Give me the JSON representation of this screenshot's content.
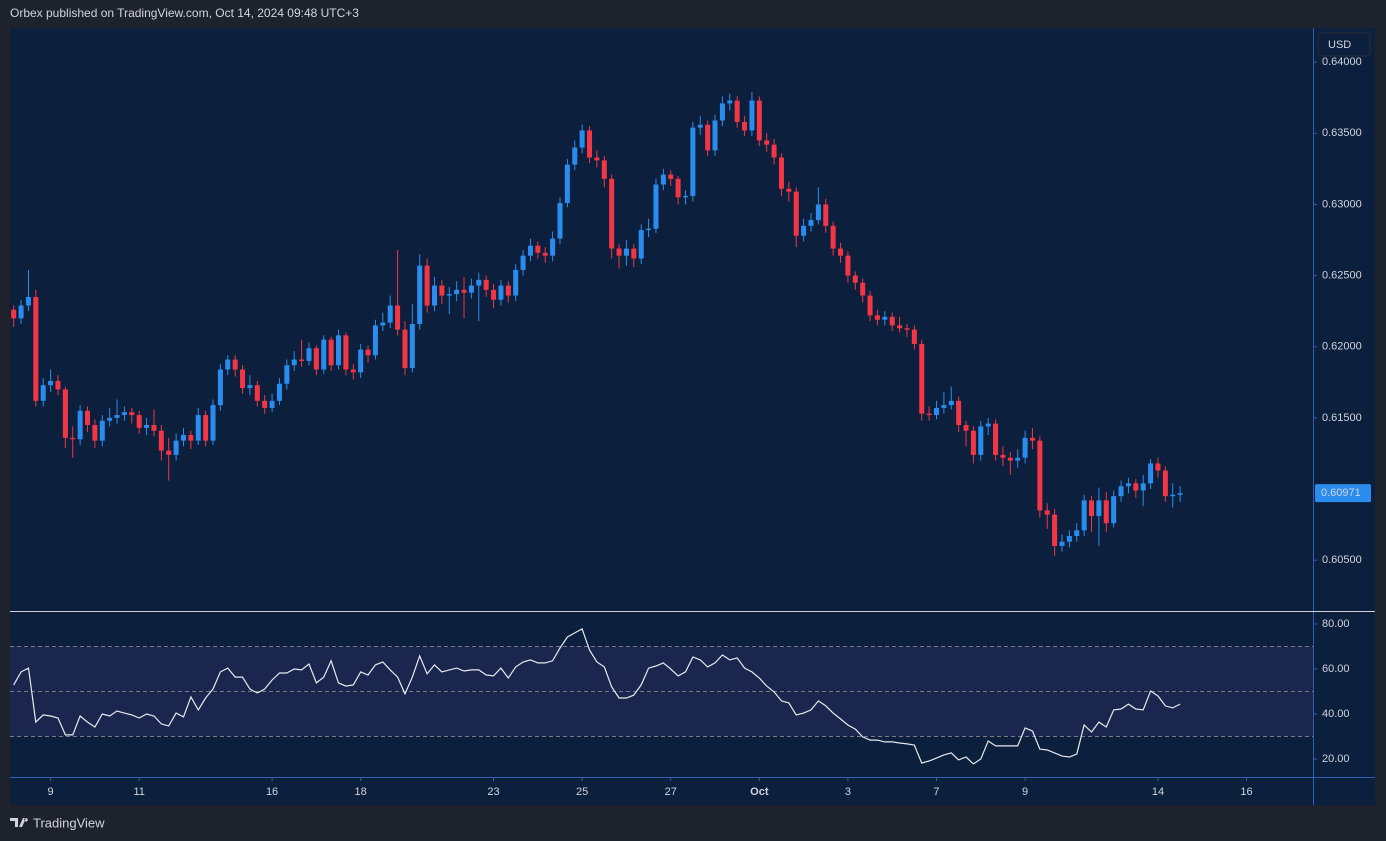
{
  "header": {
    "text": "Orbex published on TradingView.com, Oct 14, 2024 09:48 UTC+3"
  },
  "footer": {
    "brand": "TradingView"
  },
  "chart_data": [
    {
      "type": "candlestick",
      "currency": "USD",
      "up_color": "#2a8ded",
      "down_color": "#f23645",
      "grid": false,
      "last_price_label": true,
      "xlim": [
        -0.5,
        176
      ],
      "ylim": [
        0.6015,
        0.6424
      ],
      "xticks": [
        {
          "value": 5,
          "label": "9"
        },
        {
          "value": 17,
          "label": "11"
        },
        {
          "value": 35,
          "label": "16"
        },
        {
          "value": 47,
          "label": "18"
        },
        {
          "value": 65,
          "label": "23"
        },
        {
          "value": 77,
          "label": "25"
        },
        {
          "value": 89,
          "label": "27"
        },
        {
          "value": 101,
          "label": "Oct"
        },
        {
          "value": 113,
          "label": "3"
        },
        {
          "value": 125,
          "label": "7"
        },
        {
          "value": 137,
          "label": "9"
        },
        {
          "value": 155,
          "label": "14"
        },
        {
          "value": 167,
          "label": "16"
        }
      ],
      "yticks": [
        {
          "value": 0.605,
          "label": "0.60500"
        },
        {
          "value": 0.615,
          "label": "0.61500"
        },
        {
          "value": 0.62,
          "label": "0.62000"
        },
        {
          "value": 0.625,
          "label": "0.62500"
        },
        {
          "value": 0.63,
          "label": "0.63000"
        },
        {
          "value": 0.635,
          "label": "0.63500"
        },
        {
          "value": 0.64,
          "label": "0.64000"
        }
      ],
      "candles": [
        [
          0.6226,
          0.6229,
          0.6214,
          0.622
        ],
        [
          0.622,
          0.6233,
          0.6216,
          0.6229
        ],
        [
          0.6229,
          0.6254,
          0.6225,
          0.6235
        ],
        [
          0.6235,
          0.624,
          0.6158,
          0.6162
        ],
        [
          0.6162,
          0.6178,
          0.6158,
          0.6173
        ],
        [
          0.6173,
          0.6184,
          0.6168,
          0.6176
        ],
        [
          0.6176,
          0.618,
          0.6166,
          0.617
        ],
        [
          0.617,
          0.6172,
          0.6129,
          0.6136
        ],
        [
          0.6136,
          0.6144,
          0.6122,
          0.6135
        ],
        [
          0.6135,
          0.6159,
          0.6131,
          0.6155
        ],
        [
          0.6155,
          0.6158,
          0.614,
          0.6145
        ],
        [
          0.6145,
          0.6149,
          0.6129,
          0.6134
        ],
        [
          0.6134,
          0.6152,
          0.613,
          0.6148
        ],
        [
          0.6148,
          0.6157,
          0.6144,
          0.615
        ],
        [
          0.615,
          0.6163,
          0.6146,
          0.6152
        ],
        [
          0.6152,
          0.6158,
          0.6148,
          0.6154
        ],
        [
          0.6154,
          0.6157,
          0.6146,
          0.6152
        ],
        [
          0.6152,
          0.6155,
          0.6139,
          0.6143
        ],
        [
          0.6143,
          0.615,
          0.6138,
          0.6145
        ],
        [
          0.6145,
          0.6156,
          0.6137,
          0.6141
        ],
        [
          0.6141,
          0.6145,
          0.612,
          0.6127
        ],
        [
          0.6127,
          0.6136,
          0.6106,
          0.6124
        ],
        [
          0.6124,
          0.6139,
          0.612,
          0.6134
        ],
        [
          0.6134,
          0.6143,
          0.613,
          0.6138
        ],
        [
          0.6138,
          0.6141,
          0.6128,
          0.6134
        ],
        [
          0.6134,
          0.6157,
          0.6131,
          0.6152
        ],
        [
          0.6152,
          0.6155,
          0.613,
          0.6134
        ],
        [
          0.6134,
          0.6163,
          0.6131,
          0.6159
        ],
        [
          0.6159,
          0.6188,
          0.6155,
          0.6184
        ],
        [
          0.6184,
          0.6194,
          0.618,
          0.6191
        ],
        [
          0.6191,
          0.6194,
          0.6179,
          0.6184
        ],
        [
          0.6184,
          0.6187,
          0.6167,
          0.6171
        ],
        [
          0.6171,
          0.618,
          0.6166,
          0.6173
        ],
        [
          0.6173,
          0.6176,
          0.6158,
          0.6162
        ],
        [
          0.6162,
          0.6166,
          0.6153,
          0.6157
        ],
        [
          0.6157,
          0.6167,
          0.6154,
          0.6162
        ],
        [
          0.6162,
          0.6178,
          0.6159,
          0.6174
        ],
        [
          0.6174,
          0.6191,
          0.617,
          0.6187
        ],
        [
          0.6187,
          0.6197,
          0.6183,
          0.6191
        ],
        [
          0.6191,
          0.6205,
          0.6186,
          0.619
        ],
        [
          0.619,
          0.6203,
          0.6187,
          0.6199
        ],
        [
          0.6199,
          0.6201,
          0.618,
          0.6184
        ],
        [
          0.6184,
          0.6208,
          0.6181,
          0.6205
        ],
        [
          0.6205,
          0.6207,
          0.6183,
          0.6187
        ],
        [
          0.6187,
          0.6212,
          0.6184,
          0.6208
        ],
        [
          0.6208,
          0.621,
          0.618,
          0.6184
        ],
        [
          0.6184,
          0.6188,
          0.6177,
          0.6182
        ],
        [
          0.6182,
          0.6202,
          0.6178,
          0.6198
        ],
        [
          0.6198,
          0.6201,
          0.6189,
          0.6194
        ],
        [
          0.6194,
          0.6219,
          0.6191,
          0.6215
        ],
        [
          0.6215,
          0.6224,
          0.6211,
          0.6217
        ],
        [
          0.6217,
          0.6236,
          0.6213,
          0.6229
        ],
        [
          0.6229,
          0.6268,
          0.6208,
          0.6212
        ],
        [
          0.6212,
          0.6218,
          0.618,
          0.6185
        ],
        [
          0.6185,
          0.623,
          0.6182,
          0.6216
        ],
        [
          0.6216,
          0.6265,
          0.6212,
          0.6257
        ],
        [
          0.6257,
          0.6262,
          0.6224,
          0.6229
        ],
        [
          0.6229,
          0.6249,
          0.6225,
          0.6243
        ],
        [
          0.6243,
          0.6247,
          0.623,
          0.6236
        ],
        [
          0.6236,
          0.6242,
          0.6223,
          0.6237
        ],
        [
          0.6237,
          0.6246,
          0.6232,
          0.624
        ],
        [
          0.624,
          0.6249,
          0.622,
          0.6238
        ],
        [
          0.6238,
          0.6248,
          0.6234,
          0.6243
        ],
        [
          0.6243,
          0.6252,
          0.6218,
          0.6247
        ],
        [
          0.6247,
          0.625,
          0.6235,
          0.624
        ],
        [
          0.624,
          0.6244,
          0.6227,
          0.6233
        ],
        [
          0.6233,
          0.6247,
          0.6229,
          0.6243
        ],
        [
          0.6243,
          0.6246,
          0.6231,
          0.6236
        ],
        [
          0.6236,
          0.6258,
          0.6232,
          0.6254
        ],
        [
          0.6254,
          0.6268,
          0.625,
          0.6264
        ],
        [
          0.6264,
          0.6276,
          0.626,
          0.6271
        ],
        [
          0.6271,
          0.6274,
          0.6262,
          0.6266
        ],
        [
          0.6266,
          0.627,
          0.6259,
          0.6264
        ],
        [
          0.6264,
          0.6281,
          0.626,
          0.6276
        ],
        [
          0.6276,
          0.6305,
          0.6272,
          0.6301
        ],
        [
          0.6301,
          0.6332,
          0.6298,
          0.6328
        ],
        [
          0.6328,
          0.6345,
          0.6324,
          0.634
        ],
        [
          0.634,
          0.6356,
          0.6336,
          0.6352
        ],
        [
          0.6352,
          0.6355,
          0.6329,
          0.6333
        ],
        [
          0.6333,
          0.6338,
          0.6326,
          0.6331
        ],
        [
          0.6331,
          0.6334,
          0.6312,
          0.6318
        ],
        [
          0.6318,
          0.6321,
          0.6262,
          0.6269
        ],
        [
          0.6269,
          0.6272,
          0.6255,
          0.6264
        ],
        [
          0.6264,
          0.6275,
          0.6257,
          0.6269
        ],
        [
          0.6269,
          0.6272,
          0.6256,
          0.6262
        ],
        [
          0.6262,
          0.6286,
          0.6258,
          0.6282
        ],
        [
          0.6282,
          0.629,
          0.6277,
          0.6283
        ],
        [
          0.6283,
          0.6318,
          0.628,
          0.6314
        ],
        [
          0.6314,
          0.6325,
          0.631,
          0.6321
        ],
        [
          0.6321,
          0.6324,
          0.6313,
          0.6318
        ],
        [
          0.6318,
          0.632,
          0.63,
          0.6305
        ],
        [
          0.6305,
          0.631,
          0.63,
          0.6306
        ],
        [
          0.6306,
          0.6358,
          0.6302,
          0.6354
        ],
        [
          0.6354,
          0.6362,
          0.6349,
          0.6356
        ],
        [
          0.6356,
          0.6359,
          0.6334,
          0.6338
        ],
        [
          0.6338,
          0.6363,
          0.6334,
          0.6359
        ],
        [
          0.6359,
          0.6376,
          0.6355,
          0.6371
        ],
        [
          0.6371,
          0.6378,
          0.6366,
          0.6373
        ],
        [
          0.6373,
          0.6376,
          0.6354,
          0.6358
        ],
        [
          0.6358,
          0.6362,
          0.6348,
          0.6352
        ],
        [
          0.6352,
          0.6379,
          0.6348,
          0.6373
        ],
        [
          0.6373,
          0.6376,
          0.6341,
          0.6345
        ],
        [
          0.6345,
          0.635,
          0.6337,
          0.6342
        ],
        [
          0.6342,
          0.6346,
          0.6328,
          0.6333
        ],
        [
          0.6333,
          0.6336,
          0.6306,
          0.6311
        ],
        [
          0.6311,
          0.6316,
          0.6302,
          0.6309
        ],
        [
          0.6309,
          0.6312,
          0.627,
          0.6278
        ],
        [
          0.6278,
          0.629,
          0.6274,
          0.6285
        ],
        [
          0.6285,
          0.6294,
          0.6281,
          0.6289
        ],
        [
          0.6289,
          0.6312,
          0.6286,
          0.63
        ],
        [
          0.63,
          0.6304,
          0.628,
          0.6285
        ],
        [
          0.6285,
          0.6288,
          0.6264,
          0.6269
        ],
        [
          0.6269,
          0.6273,
          0.6259,
          0.6264
        ],
        [
          0.6264,
          0.6267,
          0.6245,
          0.625
        ],
        [
          0.625,
          0.6253,
          0.624,
          0.6245
        ],
        [
          0.6245,
          0.6248,
          0.6231,
          0.6236
        ],
        [
          0.6236,
          0.6239,
          0.6218,
          0.6222
        ],
        [
          0.6222,
          0.6226,
          0.6215,
          0.6219
        ],
        [
          0.6219,
          0.6225,
          0.6215,
          0.6221
        ],
        [
          0.6221,
          0.6224,
          0.6211,
          0.6215
        ],
        [
          0.6215,
          0.6221,
          0.621,
          0.6213
        ],
        [
          0.6213,
          0.6216,
          0.6207,
          0.6212
        ],
        [
          0.6212,
          0.6215,
          0.6198,
          0.6202
        ],
        [
          0.6202,
          0.6205,
          0.6148,
          0.6153
        ],
        [
          0.6153,
          0.6158,
          0.6148,
          0.6152
        ],
        [
          0.6152,
          0.6162,
          0.6149,
          0.6157
        ],
        [
          0.6157,
          0.6168,
          0.6153,
          0.6159
        ],
        [
          0.6159,
          0.6172,
          0.6156,
          0.6162
        ],
        [
          0.6162,
          0.6165,
          0.614,
          0.6145
        ],
        [
          0.6145,
          0.6148,
          0.613,
          0.6141
        ],
        [
          0.6141,
          0.6144,
          0.6118,
          0.6124
        ],
        [
          0.6124,
          0.6148,
          0.612,
          0.6144
        ],
        [
          0.6144,
          0.615,
          0.6138,
          0.6146
        ],
        [
          0.6146,
          0.6149,
          0.612,
          0.6124
        ],
        [
          0.6124,
          0.613,
          0.6116,
          0.6122
        ],
        [
          0.6122,
          0.6126,
          0.611,
          0.612
        ],
        [
          0.612,
          0.6128,
          0.6115,
          0.6122
        ],
        [
          0.6122,
          0.6141,
          0.6118,
          0.6136
        ],
        [
          0.6136,
          0.6143,
          0.6128,
          0.6134
        ],
        [
          0.6134,
          0.6137,
          0.608,
          0.6085
        ],
        [
          0.6085,
          0.609,
          0.6072,
          0.6082
        ],
        [
          0.6082,
          0.6086,
          0.6053,
          0.606
        ],
        [
          0.606,
          0.6068,
          0.6056,
          0.6063
        ],
        [
          0.6063,
          0.6071,
          0.6059,
          0.6067
        ],
        [
          0.6067,
          0.6076,
          0.6063,
          0.6071
        ],
        [
          0.6071,
          0.6096,
          0.6067,
          0.6092
        ],
        [
          0.6092,
          0.6095,
          0.607,
          0.6081
        ],
        [
          0.6081,
          0.6101,
          0.606,
          0.6092
        ],
        [
          0.6092,
          0.6098,
          0.607,
          0.6076
        ],
        [
          0.6076,
          0.6099,
          0.6073,
          0.6095
        ],
        [
          0.6095,
          0.6106,
          0.6091,
          0.6102
        ],
        [
          0.6102,
          0.6108,
          0.6097,
          0.6104
        ],
        [
          0.6104,
          0.6107,
          0.6094,
          0.6099
        ],
        [
          0.6099,
          0.611,
          0.6088,
          0.6104
        ],
        [
          0.6104,
          0.6121,
          0.61,
          0.6118
        ],
        [
          0.6118,
          0.6122,
          0.6108,
          0.6113
        ],
        [
          0.6113,
          0.6116,
          0.6091,
          0.6095
        ],
        [
          0.6095,
          0.6104,
          0.6087,
          0.6096
        ],
        [
          0.6096,
          0.6102,
          0.6091,
          0.60971
        ]
      ]
    },
    {
      "type": "line",
      "color": "#e6e8ee",
      "band_color": "#7e57c2",
      "levels": [
        70,
        50,
        30
      ],
      "xlim": [
        -0.5,
        176
      ],
      "ylim": [
        12,
        85.3
      ],
      "yticks": [
        {
          "value": 20,
          "label": "20.00"
        },
        {
          "value": 40,
          "label": "40.00"
        },
        {
          "value": 60,
          "label": "60.00"
        },
        {
          "value": 80,
          "label": "80.00"
        }
      ],
      "values": [
        52.9,
        58.7,
        60.4,
        36.4,
        39.6,
        39.1,
        38.2,
        30.7,
        30.7,
        39.1,
        36.4,
        34.2,
        40.0,
        39.1,
        41.3,
        40.4,
        39.6,
        38.2,
        40.0,
        39.1,
        35.6,
        34.7,
        40.4,
        38.7,
        47.6,
        41.8,
        47.1,
        51.1,
        58.7,
        60.4,
        56.4,
        56.4,
        51.1,
        49.3,
        51.1,
        55.1,
        58.2,
        58.2,
        60.0,
        59.6,
        62.2,
        53.8,
        56.4,
        63.6,
        53.8,
        52.4,
        52.9,
        58.7,
        57.3,
        61.8,
        63.1,
        59.6,
        56.4,
        48.9,
        56.4,
        65.8,
        57.8,
        61.8,
        58.7,
        59.6,
        60.4,
        59.1,
        59.6,
        59.6,
        57.3,
        56.9,
        60.4,
        56.0,
        60.9,
        63.1,
        64.0,
        62.7,
        62.7,
        63.6,
        69.3,
        74.2,
        76.0,
        77.8,
        68.4,
        63.1,
        60.9,
        52.0,
        47.1,
        47.1,
        48.4,
        52.9,
        60.4,
        61.3,
        62.7,
        60.0,
        56.9,
        58.7,
        65.3,
        64.0,
        60.9,
        62.7,
        66.2,
        64.0,
        64.9,
        60.4,
        58.7,
        56.0,
        52.4,
        49.8,
        45.8,
        44.9,
        39.6,
        40.4,
        41.8,
        45.8,
        43.6,
        40.4,
        37.8,
        35.1,
        33.3,
        29.8,
        28.4,
        28.4,
        27.6,
        27.6,
        27.1,
        26.7,
        26.2,
        18.2,
        19.1,
        20.4,
        21.8,
        22.7,
        19.6,
        20.9,
        17.8,
        20.0,
        28.0,
        25.8,
        25.8,
        25.8,
        25.8,
        33.8,
        32.4,
        24.4,
        24.0,
        22.7,
        21.3,
        20.9,
        22.2,
        35.1,
        32.0,
        36.4,
        34.2,
        41.8,
        42.2,
        44.4,
        42.2,
        41.8,
        50.2,
        48.0,
        43.6,
        42.7,
        44.4
      ]
    }
  ]
}
